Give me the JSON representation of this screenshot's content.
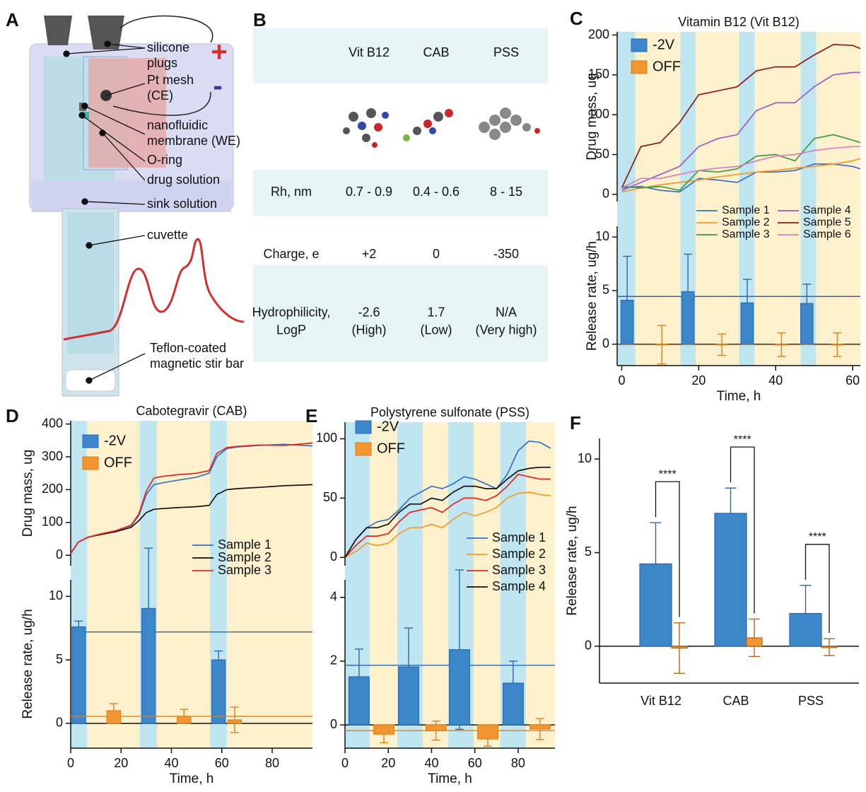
{
  "diagram": {
    "label": "A",
    "annotations": [
      {
        "lines": [
          "silicone",
          "plugs"
        ]
      },
      {
        "lines": [
          "Pt mesh",
          "(CE)"
        ]
      },
      {
        "lines": [
          "nanofluidic",
          "membrane (WE)"
        ]
      },
      {
        "lines": [
          "O-ring"
        ]
      },
      {
        "lines": [
          "drug solution"
        ]
      },
      {
        "lines": [
          "sink solution"
        ]
      },
      {
        "lines": [
          "cuvette"
        ]
      },
      {
        "lines": [
          "Teflon-coated",
          "magnetic stir bar"
        ]
      }
    ],
    "polarity": [
      "+",
      "-"
    ]
  },
  "table": {
    "label": "B",
    "columns": [
      "Vit B12",
      "CAB",
      "PSS"
    ],
    "rows": [
      {
        "header": [
          "Rh, nm"
        ],
        "cells": [
          [
            "0.7 - 0.9"
          ],
          [
            "0.4 - 0.6"
          ],
          [
            "8 - 15"
          ]
        ]
      },
      {
        "header": [
          "Charge, e"
        ],
        "cells": [
          [
            "+2"
          ],
          [
            "0"
          ],
          [
            "-350"
          ]
        ]
      },
      {
        "header": [
          "Hydrophilicity,",
          "LogP"
        ],
        "cells": [
          [
            "-2.6",
            "(High)"
          ],
          [
            "1.7",
            "(Low)"
          ],
          [
            "N/A",
            "(Very high)"
          ]
        ]
      }
    ]
  },
  "chart_data": [
    {
      "type": "line",
      "label": "C",
      "title": "Vitamin B12 (Vit B12)",
      "y_label": "Drug mass, ug",
      "xlim": [
        -1.2,
        62
      ],
      "ylim": [
        -9,
        204
      ],
      "yticks": [
        0,
        50,
        100,
        150,
        200
      ],
      "legend_columns": 2,
      "x": [
        0,
        5,
        10,
        15,
        20,
        25,
        30,
        35,
        40,
        45,
        50,
        55,
        60,
        62
      ],
      "series": [
        {
          "name": "Sample 1",
          "color": "#3a6fbf",
          "values": [
            8,
            10,
            5,
            3,
            20,
            18,
            15,
            28,
            28,
            30,
            38,
            38,
            35,
            32
          ]
        },
        {
          "name": "Sample 2",
          "color": "#f39a2b",
          "values": [
            3,
            8,
            12,
            15,
            18,
            22,
            25,
            28,
            30,
            33,
            35,
            38,
            42,
            45
          ]
        },
        {
          "name": "Sample 3",
          "color": "#3e9a3e",
          "values": [
            10,
            8,
            10,
            5,
            30,
            28,
            32,
            48,
            50,
            42,
            70,
            75,
            68,
            65
          ]
        },
        {
          "name": "Sample 4",
          "color": "#9a5cc4",
          "values": [
            5,
            15,
            25,
            35,
            60,
            70,
            75,
            105,
            115,
            115,
            135,
            150,
            153,
            153
          ]
        },
        {
          "name": "Sample 5",
          "color": "#8b1a1a",
          "values": [
            8,
            60,
            65,
            90,
            125,
            130,
            135,
            155,
            160,
            160,
            175,
            188,
            187,
            183
          ]
        },
        {
          "name": "Sample 6",
          "color": "#d77fc0",
          "values": [
            8,
            20,
            20,
            25,
            30,
            33,
            35,
            42,
            48,
            50,
            55,
            58,
            60,
            60
          ]
        }
      ]
    },
    {
      "type": "timeline_bar",
      "y_label": "Release rate, ug/h",
      "x_label": "Time, h",
      "xlim": [
        -1.2,
        62
      ],
      "xticks": [
        0,
        20,
        40,
        60
      ],
      "ylim": [
        -2,
        11
      ],
      "yticks": [
        0,
        5,
        10
      ],
      "on_intervals": [
        [
          -1.2,
          3.5
        ],
        [
          15.2,
          19.2
        ],
        [
          30.5,
          34.5
        ],
        [
          46.5,
          50.5
        ]
      ],
      "on_band_color": "#bfe5f0",
      "off_band_color": "#fdf0cd",
      "series": [
        {
          "name": "-2V",
          "color": "#3d86c9",
          "edge_color": "#2a68ad",
          "x": [
            1.4,
            17.2,
            32.6,
            48.1
          ],
          "values": [
            4.1,
            4.9,
            3.85,
            3.8
          ],
          "errors": [
            4.1,
            3.5,
            2.2,
            1.8
          ],
          "mean": 4.45
        },
        {
          "name": "OFF",
          "color": "#f29530",
          "edge_color": "#d9801f",
          "x": [
            10.4,
            26,
            41.5,
            56
          ],
          "values": [
            -0.05,
            -0.05,
            -0.05,
            -0.05
          ],
          "errors": [
            1.8,
            1.0,
            1.1,
            1.1
          ],
          "mean": -0.05
        }
      ]
    },
    {
      "type": "line",
      "label": "D",
      "title": "Cabotegravir (CAB)",
      "y_label": "Drug mass, ug",
      "xlim": [
        0,
        96
      ],
      "ylim": [
        -32,
        410
      ],
      "yticks": [
        0,
        100,
        200,
        300,
        400
      ],
      "legend_columns": 1,
      "x": [
        0,
        3,
        7,
        12,
        18,
        24,
        27,
        30,
        33,
        36,
        42,
        50,
        55,
        58,
        62,
        66,
        75,
        85,
        96
      ],
      "series": [
        {
          "name": "Sample 1",
          "color": "#3a6fbf",
          "values": [
            5,
            40,
            55,
            65,
            75,
            90,
            120,
            185,
            215,
            220,
            228,
            238,
            250,
            300,
            325,
            330,
            335,
            338,
            333
          ]
        },
        {
          "name": "Sample 2",
          "color": "#111111",
          "values": [
            5,
            40,
            55,
            63,
            72,
            85,
            105,
            130,
            140,
            142,
            145,
            148,
            152,
            185,
            200,
            203,
            207,
            212,
            215
          ]
        },
        {
          "name": "Sample 3",
          "color": "#e0261f",
          "values": [
            5,
            40,
            55,
            65,
            75,
            92,
            125,
            195,
            235,
            240,
            245,
            250,
            258,
            310,
            328,
            332,
            336,
            335,
            342
          ]
        }
      ]
    },
    {
      "type": "timeline_bar",
      "y_label": "Release rate, ug/h",
      "x_label": "Time, h",
      "xlim": [
        0,
        96
      ],
      "xticks": [
        0,
        20,
        40,
        60,
        80
      ],
      "ylim": [
        -1.95,
        11.3
      ],
      "yticks": [
        0,
        5,
        10
      ],
      "on_intervals": [
        [
          0,
          6.5
        ],
        [
          27.5,
          34.2
        ],
        [
          55.3,
          62
        ]
      ],
      "on_band_color": "#bfe5f0",
      "off_band_color": "#fdf0cd",
      "series": [
        {
          "name": "-2V",
          "color": "#3d86c9",
          "edge_color": "#2a68ad",
          "x": [
            3.2,
            30.9,
            58.7
          ],
          "values": [
            7.6,
            9.05,
            5.0
          ],
          "errors": [
            0.45,
            4.75,
            0.7
          ],
          "mean": 7.2
        },
        {
          "name": "OFF",
          "color": "#f29530",
          "edge_color": "#d9801f",
          "x": [
            17.1,
            45,
            65.1
          ],
          "values": [
            1.0,
            0.55,
            0.28
          ],
          "errors": [
            0.55,
            0.55,
            1.0
          ],
          "mean": 0.55
        }
      ]
    },
    {
      "type": "line",
      "label": "E",
      "title": "Polystyrene sulfonate (PSS)",
      "xlim": [
        0,
        97
      ],
      "ylim": [
        -7,
        114
      ],
      "yticks": [
        0,
        50,
        100
      ],
      "legend_columns": 1,
      "x": [
        0,
        5,
        10,
        15,
        20,
        25,
        30,
        35,
        40,
        45,
        50,
        55,
        60,
        65,
        70,
        75,
        80,
        85,
        90,
        95
      ],
      "series": [
        {
          "name": "Sample 1",
          "color": "#3a6fbf",
          "values": [
            0,
            15,
            25,
            30,
            32,
            40,
            50,
            55,
            60,
            58,
            62,
            68,
            66,
            62,
            58,
            70,
            90,
            98,
            97,
            92
          ]
        },
        {
          "name": "Sample 2",
          "color": "#f39a2b",
          "values": [
            0,
            5,
            12,
            10,
            12,
            20,
            25,
            25,
            28,
            25,
            32,
            38,
            35,
            38,
            42,
            50,
            54,
            55,
            53,
            52
          ]
        },
        {
          "name": "Sample 3",
          "color": "#e0261f",
          "values": [
            0,
            10,
            18,
            18,
            20,
            30,
            38,
            40,
            42,
            38,
            45,
            50,
            50,
            48,
            52,
            60,
            70,
            68,
            66,
            66
          ]
        },
        {
          "name": "Sample 4",
          "color": "#111111",
          "values": [
            0,
            15,
            25,
            25,
            28,
            38,
            45,
            45,
            50,
            48,
            55,
            60,
            60,
            58,
            58,
            66,
            73,
            75,
            76,
            76
          ]
        }
      ]
    },
    {
      "type": "timeline_bar",
      "x_label": "Time, h",
      "xlim": [
        0,
        97
      ],
      "xticks": [
        0,
        20,
        40,
        60,
        80
      ],
      "ylim": [
        -0.73,
        4.55
      ],
      "yticks": [
        0,
        2,
        4
      ],
      "on_intervals": [
        [
          0,
          11.4
        ],
        [
          24.2,
          35.9
        ],
        [
          47.7,
          59.4
        ],
        [
          71.8,
          83.6
        ]
      ],
      "on_band_color": "#bfe5f0",
      "off_band_color": "#fdf0cd",
      "series": [
        {
          "name": "-2V",
          "color": "#3d86c9",
          "edge_color": "#2a68ad",
          "x": [
            6.5,
            29.4,
            52.9,
            77.7
          ],
          "values": [
            1.51,
            1.82,
            2.36,
            1.31
          ],
          "errors": [
            0.87,
            1.22,
            2.5,
            0.69
          ],
          "mean": 1.87
        },
        {
          "name": "OFF",
          "color": "#f29530",
          "edge_color": "#d9801f",
          "x": [
            18,
            42.1,
            66,
            90.1
          ],
          "values": [
            -0.29,
            -0.18,
            -0.44,
            -0.13
          ],
          "errors": [
            0.27,
            0.3,
            0.23,
            0.33
          ],
          "mean": -0.18
        }
      ]
    },
    {
      "type": "group_bar",
      "label": "F",
      "y_label": "Release rate, ug/h",
      "ylim": [
        -1.97,
        11.1
      ],
      "yticks": [
        0,
        5,
        10
      ],
      "categories": [
        "Vit B12",
        "CAB",
        "PSS"
      ],
      "significance": [
        "****",
        "****",
        "****"
      ],
      "series": [
        {
          "color": "#3d86c9",
          "edge_color": "#2a68ad",
          "values": [
            4.4,
            7.1,
            1.75
          ],
          "errors": [
            2.2,
            1.35,
            1.5
          ]
        },
        {
          "color": "#f29530",
          "edge_color": "#b5651d",
          "values": [
            -0.1,
            0.45,
            -0.05
          ],
          "errors": [
            1.35,
            1.0,
            0.45
          ]
        }
      ]
    }
  ]
}
